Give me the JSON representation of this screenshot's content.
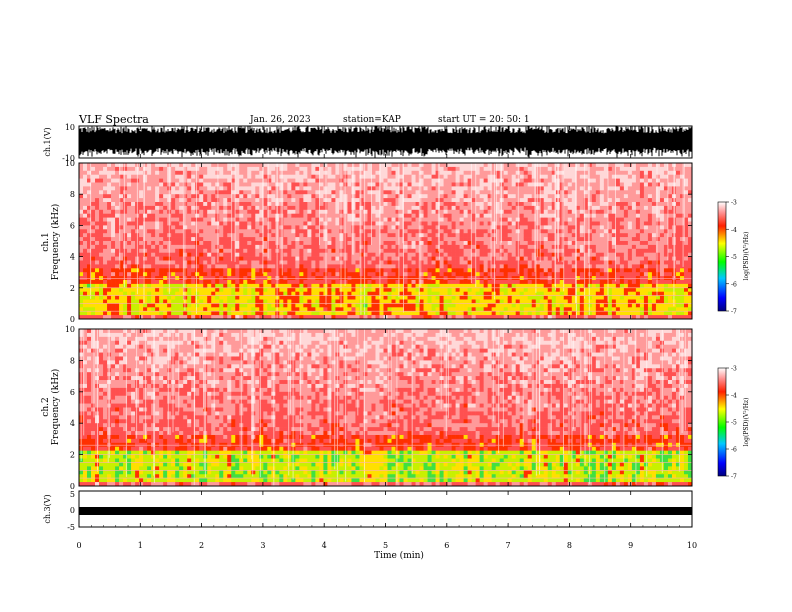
{
  "header": {
    "title": "VLF Spectra",
    "date": "Jan. 26, 2023",
    "station": "station=KAP",
    "start": "start UT =  20: 50: 1"
  },
  "chart_data": [
    {
      "type": "line",
      "panel": "ch1-waveform",
      "ylabel": "ch.1(V)",
      "ylim": [
        -10,
        10
      ],
      "y_ticks": [
        "10",
        "-10"
      ],
      "xlim": [
        0,
        10
      ],
      "description_values": "dense waveform filling most of range"
    },
    {
      "type": "heatmap",
      "panel": "ch1-spectrogram",
      "ylabel": "ch.1 Frequency (kHz)",
      "ylabel_line1": "ch.1",
      "ylabel_line2": "Frequency (kHz)",
      "ylim": [
        0,
        10
      ],
      "y_ticks": [
        "0",
        "2",
        "4",
        "6",
        "8",
        "10"
      ],
      "xlim": [
        0,
        10
      ],
      "colorbar": {
        "label": "log(PSD)(V²/Hz)",
        "range": [
          -7,
          -3
        ],
        "ticks": [
          "-3",
          "-4",
          "-5",
          "-6",
          "-7"
        ]
      }
    },
    {
      "type": "heatmap",
      "panel": "ch2-spectrogram",
      "ylabel": "ch.2 Frequency (kHz)",
      "ylabel_line1": "ch.2",
      "ylabel_line2": "Frequency (kHz)",
      "ylim": [
        0,
        10
      ],
      "y_ticks": [
        "0",
        "2",
        "4",
        "6",
        "8",
        "10"
      ],
      "xlim": [
        0,
        10
      ],
      "colorbar": {
        "label": "log(PSD)(V²/Hz)",
        "range": [
          -7,
          -3
        ],
        "ticks": [
          "-3",
          "-4",
          "-5",
          "-6",
          "-7"
        ]
      }
    },
    {
      "type": "line",
      "panel": "ch3-waveform",
      "ylabel": "ch.3(V)",
      "ylim": [
        -5,
        5
      ],
      "y_ticks": [
        "5",
        "0",
        "-5"
      ],
      "xlim": [
        0,
        10
      ],
      "xlabel": "Time (min)",
      "x_ticks": [
        "0",
        "1",
        "2",
        "3",
        "4",
        "5",
        "6",
        "7",
        "8",
        "9",
        "10"
      ]
    }
  ],
  "colors": {
    "axis": "#000000",
    "colormap": [
      "#000080",
      "#0000ff",
      "#00c0ff",
      "#00ff00",
      "#ffff00",
      "#ff0000",
      "#ffffff"
    ]
  }
}
